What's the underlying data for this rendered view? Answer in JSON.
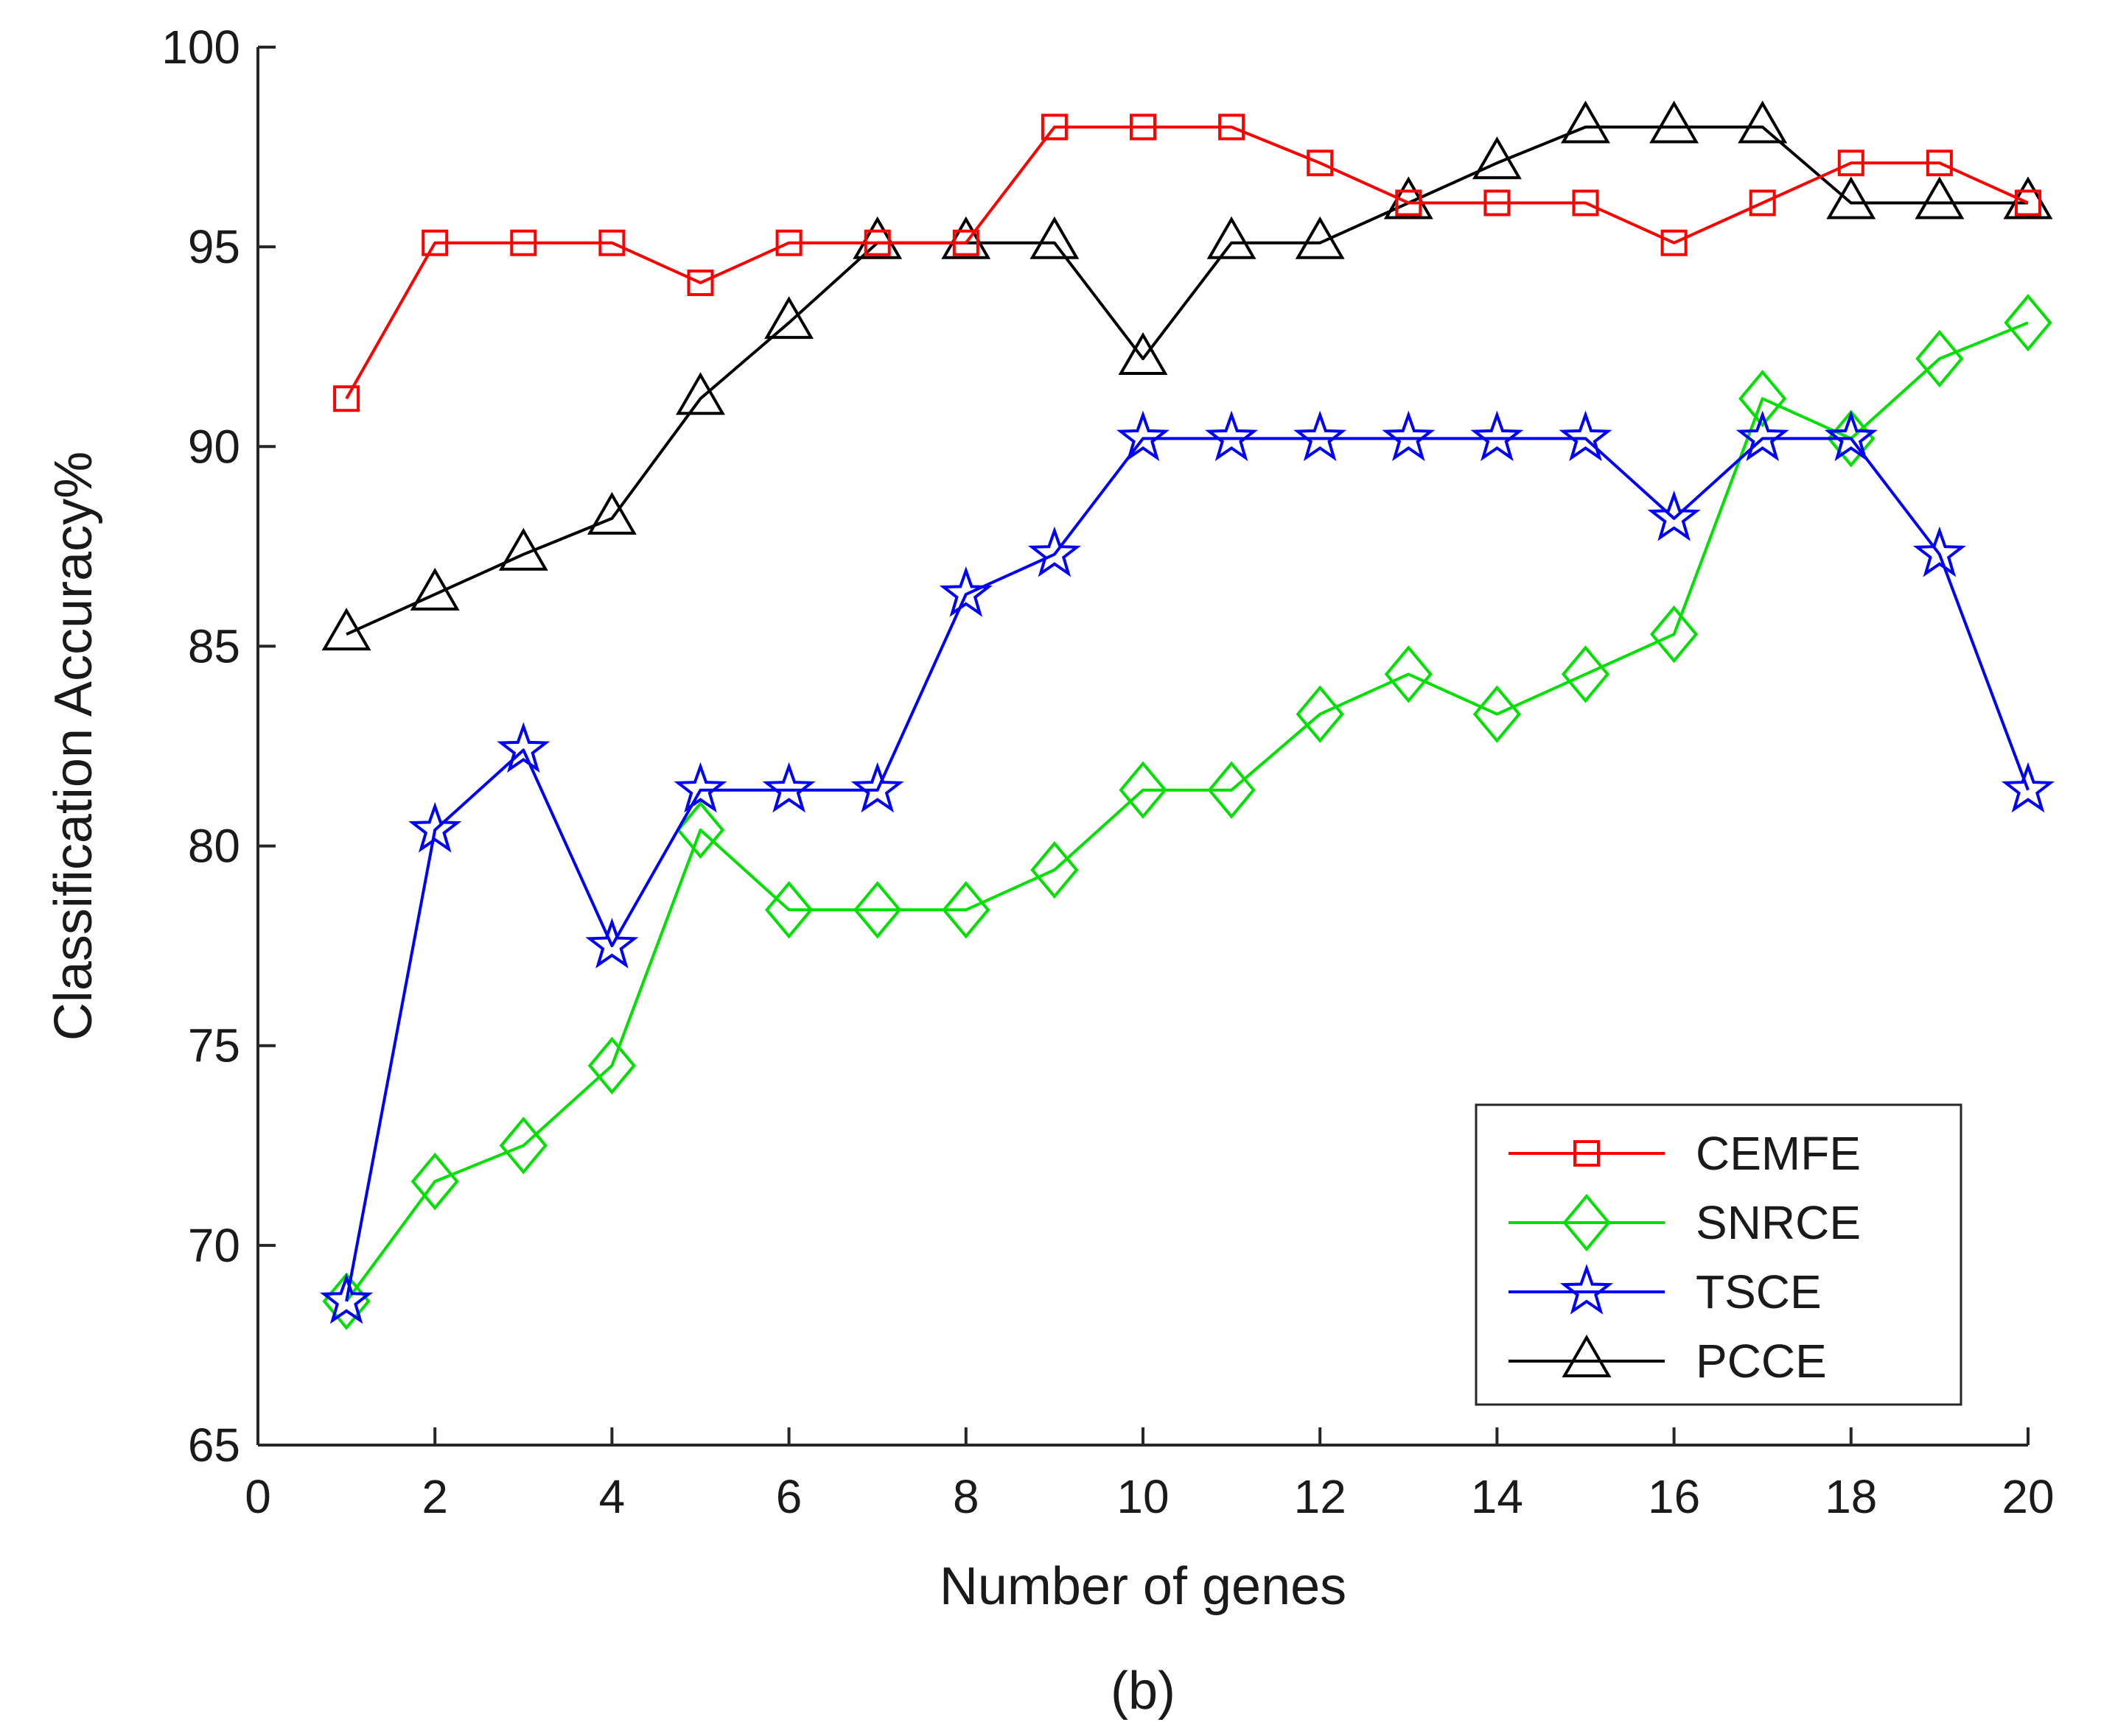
{
  "chart_data": {
    "type": "line",
    "caption": "(b)",
    "xlabel": "Number of genes",
    "ylabel": "Classification Accuracy%",
    "xlim": [
      0,
      20
    ],
    "ylim": [
      65,
      100
    ],
    "xticks": [
      0,
      2,
      4,
      6,
      8,
      10,
      12,
      14,
      16,
      18,
      20
    ],
    "yticks": [
      65,
      70,
      75,
      80,
      85,
      90,
      95,
      100
    ],
    "xtick_labels": [
      "0",
      "2",
      "4",
      "6",
      "8",
      "10",
      "12",
      "14",
      "16",
      "18",
      "20"
    ],
    "ytick_labels": [
      "65",
      "70",
      "75",
      "80",
      "85",
      "90",
      "95",
      "100"
    ],
    "grid": false,
    "legend_position": "bottom-right",
    "x": [
      1,
      2,
      3,
      4,
      5,
      6,
      7,
      8,
      9,
      10,
      11,
      12,
      13,
      14,
      15,
      16,
      17,
      18,
      19,
      20
    ],
    "series": [
      {
        "name": "CEMFE",
        "color": "#ff0000",
        "marker": "square",
        "values": [
          91.2,
          95.1,
          95.1,
          95.1,
          94.1,
          95.1,
          95.1,
          95.1,
          98.0,
          98.0,
          98.0,
          97.1,
          96.1,
          96.1,
          96.1,
          95.1,
          96.1,
          97.1,
          97.1,
          96.1
        ]
      },
      {
        "name": "SNRCE",
        "color": "#00e000",
        "marker": "diamond",
        "values": [
          68.6,
          71.6,
          72.5,
          74.5,
          80.4,
          78.4,
          78.4,
          78.4,
          79.4,
          81.4,
          81.4,
          83.3,
          84.3,
          83.3,
          84.3,
          85.3,
          91.2,
          90.2,
          92.2,
          93.1
        ]
      },
      {
        "name": "TSCE",
        "color": "#0000ff",
        "marker": "star",
        "values": [
          68.6,
          80.4,
          82.4,
          77.5,
          81.4,
          81.4,
          81.4,
          86.3,
          87.3,
          90.2,
          90.2,
          90.2,
          90.2,
          90.2,
          90.2,
          88.2,
          90.2,
          90.2,
          87.3,
          81.4
        ]
      },
      {
        "name": "PCCE",
        "color": "#000000",
        "marker": "triangle",
        "values": [
          85.3,
          86.3,
          87.3,
          88.2,
          91.2,
          93.1,
          95.1,
          95.1,
          95.1,
          92.2,
          95.1,
          95.1,
          96.1,
          97.1,
          98.0,
          98.0,
          98.0,
          96.1,
          96.1,
          96.1
        ]
      }
    ]
  }
}
